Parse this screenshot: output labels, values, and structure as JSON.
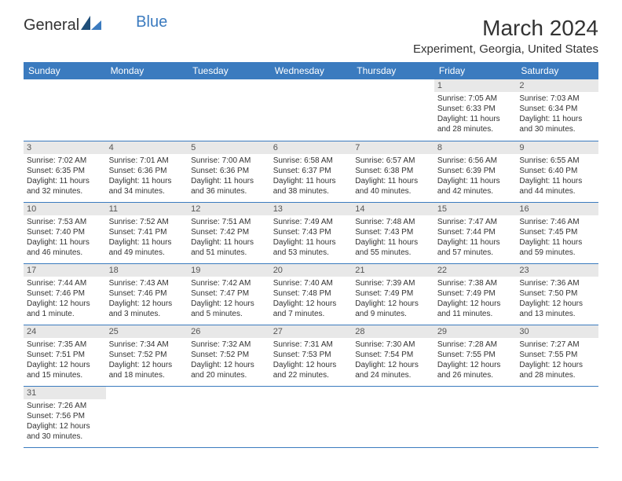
{
  "brand": {
    "part1": "General",
    "part2": "Blue"
  },
  "title": "March 2024",
  "location": "Experiment, Georgia, United States",
  "colors": {
    "header_bg": "#3b7bbf",
    "daynum_bg": "#e8e8e8",
    "text": "#333333"
  },
  "days": [
    "Sunday",
    "Monday",
    "Tuesday",
    "Wednesday",
    "Thursday",
    "Friday",
    "Saturday"
  ],
  "weeks": [
    [
      null,
      null,
      null,
      null,
      null,
      {
        "n": "1",
        "sr": "Sunrise: 7:05 AM",
        "ss": "Sunset: 6:33 PM",
        "dl": "Daylight: 11 hours and 28 minutes."
      },
      {
        "n": "2",
        "sr": "Sunrise: 7:03 AM",
        "ss": "Sunset: 6:34 PM",
        "dl": "Daylight: 11 hours and 30 minutes."
      }
    ],
    [
      {
        "n": "3",
        "sr": "Sunrise: 7:02 AM",
        "ss": "Sunset: 6:35 PM",
        "dl": "Daylight: 11 hours and 32 minutes."
      },
      {
        "n": "4",
        "sr": "Sunrise: 7:01 AM",
        "ss": "Sunset: 6:36 PM",
        "dl": "Daylight: 11 hours and 34 minutes."
      },
      {
        "n": "5",
        "sr": "Sunrise: 7:00 AM",
        "ss": "Sunset: 6:36 PM",
        "dl": "Daylight: 11 hours and 36 minutes."
      },
      {
        "n": "6",
        "sr": "Sunrise: 6:58 AM",
        "ss": "Sunset: 6:37 PM",
        "dl": "Daylight: 11 hours and 38 minutes."
      },
      {
        "n": "7",
        "sr": "Sunrise: 6:57 AM",
        "ss": "Sunset: 6:38 PM",
        "dl": "Daylight: 11 hours and 40 minutes."
      },
      {
        "n": "8",
        "sr": "Sunrise: 6:56 AM",
        "ss": "Sunset: 6:39 PM",
        "dl": "Daylight: 11 hours and 42 minutes."
      },
      {
        "n": "9",
        "sr": "Sunrise: 6:55 AM",
        "ss": "Sunset: 6:40 PM",
        "dl": "Daylight: 11 hours and 44 minutes."
      }
    ],
    [
      {
        "n": "10",
        "sr": "Sunrise: 7:53 AM",
        "ss": "Sunset: 7:40 PM",
        "dl": "Daylight: 11 hours and 46 minutes."
      },
      {
        "n": "11",
        "sr": "Sunrise: 7:52 AM",
        "ss": "Sunset: 7:41 PM",
        "dl": "Daylight: 11 hours and 49 minutes."
      },
      {
        "n": "12",
        "sr": "Sunrise: 7:51 AM",
        "ss": "Sunset: 7:42 PM",
        "dl": "Daylight: 11 hours and 51 minutes."
      },
      {
        "n": "13",
        "sr": "Sunrise: 7:49 AM",
        "ss": "Sunset: 7:43 PM",
        "dl": "Daylight: 11 hours and 53 minutes."
      },
      {
        "n": "14",
        "sr": "Sunrise: 7:48 AM",
        "ss": "Sunset: 7:43 PM",
        "dl": "Daylight: 11 hours and 55 minutes."
      },
      {
        "n": "15",
        "sr": "Sunrise: 7:47 AM",
        "ss": "Sunset: 7:44 PM",
        "dl": "Daylight: 11 hours and 57 minutes."
      },
      {
        "n": "16",
        "sr": "Sunrise: 7:46 AM",
        "ss": "Sunset: 7:45 PM",
        "dl": "Daylight: 11 hours and 59 minutes."
      }
    ],
    [
      {
        "n": "17",
        "sr": "Sunrise: 7:44 AM",
        "ss": "Sunset: 7:46 PM",
        "dl": "Daylight: 12 hours and 1 minute."
      },
      {
        "n": "18",
        "sr": "Sunrise: 7:43 AM",
        "ss": "Sunset: 7:46 PM",
        "dl": "Daylight: 12 hours and 3 minutes."
      },
      {
        "n": "19",
        "sr": "Sunrise: 7:42 AM",
        "ss": "Sunset: 7:47 PM",
        "dl": "Daylight: 12 hours and 5 minutes."
      },
      {
        "n": "20",
        "sr": "Sunrise: 7:40 AM",
        "ss": "Sunset: 7:48 PM",
        "dl": "Daylight: 12 hours and 7 minutes."
      },
      {
        "n": "21",
        "sr": "Sunrise: 7:39 AM",
        "ss": "Sunset: 7:49 PM",
        "dl": "Daylight: 12 hours and 9 minutes."
      },
      {
        "n": "22",
        "sr": "Sunrise: 7:38 AM",
        "ss": "Sunset: 7:49 PM",
        "dl": "Daylight: 12 hours and 11 minutes."
      },
      {
        "n": "23",
        "sr": "Sunrise: 7:36 AM",
        "ss": "Sunset: 7:50 PM",
        "dl": "Daylight: 12 hours and 13 minutes."
      }
    ],
    [
      {
        "n": "24",
        "sr": "Sunrise: 7:35 AM",
        "ss": "Sunset: 7:51 PM",
        "dl": "Daylight: 12 hours and 15 minutes."
      },
      {
        "n": "25",
        "sr": "Sunrise: 7:34 AM",
        "ss": "Sunset: 7:52 PM",
        "dl": "Daylight: 12 hours and 18 minutes."
      },
      {
        "n": "26",
        "sr": "Sunrise: 7:32 AM",
        "ss": "Sunset: 7:52 PM",
        "dl": "Daylight: 12 hours and 20 minutes."
      },
      {
        "n": "27",
        "sr": "Sunrise: 7:31 AM",
        "ss": "Sunset: 7:53 PM",
        "dl": "Daylight: 12 hours and 22 minutes."
      },
      {
        "n": "28",
        "sr": "Sunrise: 7:30 AM",
        "ss": "Sunset: 7:54 PM",
        "dl": "Daylight: 12 hours and 24 minutes."
      },
      {
        "n": "29",
        "sr": "Sunrise: 7:28 AM",
        "ss": "Sunset: 7:55 PM",
        "dl": "Daylight: 12 hours and 26 minutes."
      },
      {
        "n": "30",
        "sr": "Sunrise: 7:27 AM",
        "ss": "Sunset: 7:55 PM",
        "dl": "Daylight: 12 hours and 28 minutes."
      }
    ],
    [
      {
        "n": "31",
        "sr": "Sunrise: 7:26 AM",
        "ss": "Sunset: 7:56 PM",
        "dl": "Daylight: 12 hours and 30 minutes."
      },
      null,
      null,
      null,
      null,
      null,
      null
    ]
  ]
}
